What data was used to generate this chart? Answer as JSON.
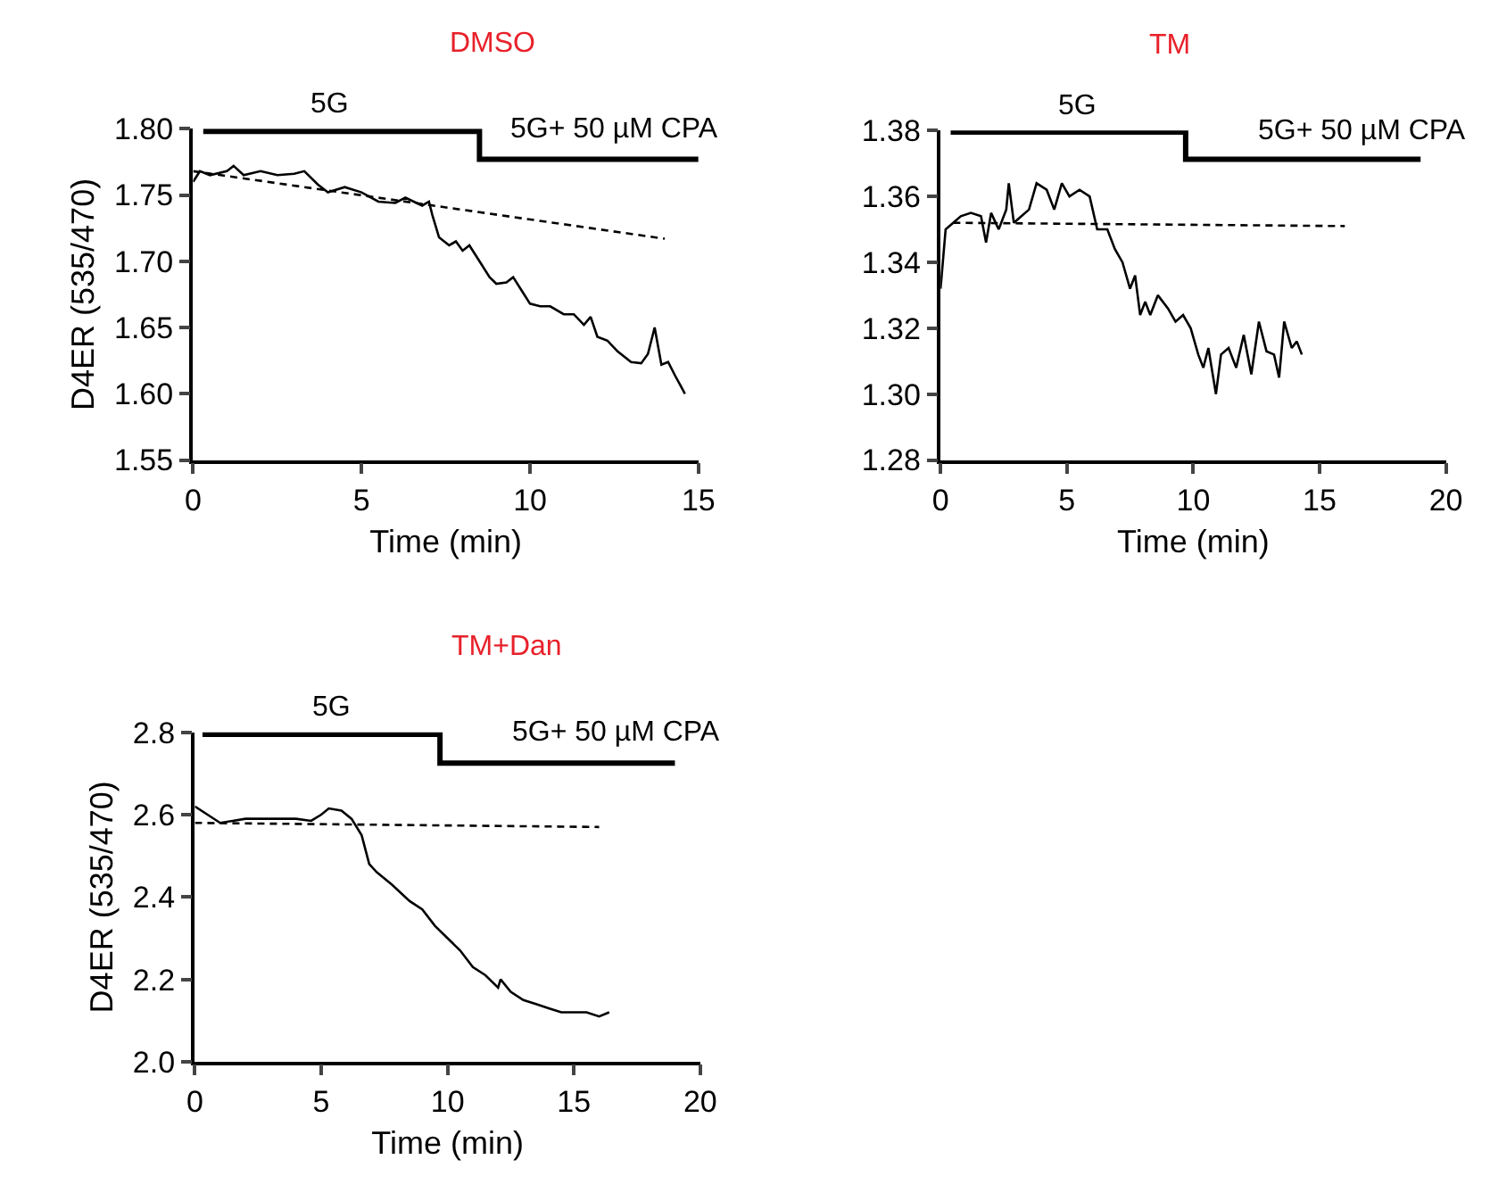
{
  "chart_data": [
    {
      "type": "line",
      "title": "DMSO",
      "xlabel": "Time (min)",
      "ylabel": "D4ER (535/470)",
      "xlim": [
        0,
        15
      ],
      "xticks": [
        0,
        5,
        10,
        15
      ],
      "ylim": [
        1.55,
        1.8
      ],
      "yticks": [
        {
          "value": 1.55,
          "label": "1.55"
        },
        {
          "value": 1.6,
          "label": "1.60"
        },
        {
          "value": 1.65,
          "label": "1.65"
        },
        {
          "value": 1.7,
          "label": "1.70"
        },
        {
          "value": 1.75,
          "label": "1.75"
        },
        {
          "value": 1.8,
          "label": "1.80"
        }
      ],
      "annotations": [
        "5G",
        "5G+ 50 µM CPA"
      ],
      "series": [
        {
          "color": "#000000",
          "x": [
            0,
            0.2,
            0.5,
            1,
            1.2,
            1.5,
            2,
            2.5,
            3,
            3.3,
            3.7,
            4,
            4.5,
            5,
            5.5,
            6,
            6.3,
            6.8,
            7,
            7.1,
            7.3,
            7.6,
            7.8,
            8,
            8.2,
            8.5,
            8.8,
            9,
            9.3,
            9.5,
            9.8,
            10,
            10.3,
            10.6,
            11,
            11.3,
            11.6,
            11.8,
            12,
            12.3,
            12.6,
            13,
            13.3,
            13.5,
            13.7,
            13.9,
            14.1,
            14.3,
            14.6
          ],
          "values": [
            1.76,
            1.768,
            1.765,
            1.768,
            1.772,
            1.765,
            1.768,
            1.765,
            1.766,
            1.768,
            1.758,
            1.752,
            1.756,
            1.752,
            1.745,
            1.744,
            1.748,
            1.742,
            1.745,
            1.735,
            1.718,
            1.712,
            1.715,
            1.708,
            1.712,
            1.7,
            1.688,
            1.683,
            1.684,
            1.688,
            1.676,
            1.668,
            1.666,
            1.666,
            1.66,
            1.66,
            1.652,
            1.658,
            1.643,
            1.64,
            1.632,
            1.624,
            1.623,
            1.63,
            1.65,
            1.622,
            1.624,
            1.614,
            1.6
          ]
        },
        {
          "color": "#000000",
          "line_style": "dashed",
          "x": [
            0,
            14
          ],
          "values": [
            1.768,
            1.717
          ]
        },
        {
          "type": "step",
          "color": "#000000",
          "x": [
            0.3,
            8.5,
            15
          ],
          "values": [
            1.798,
            1.777,
            1.777
          ]
        }
      ]
    },
    {
      "type": "line",
      "title": "TM",
      "xlabel": "Time (min)",
      "xlim": [
        0,
        20
      ],
      "xticks": [
        0,
        5,
        10,
        15,
        20
      ],
      "ylim": [
        1.28,
        1.38
      ],
      "yticks": [
        1.28,
        {
          "value": 1.3,
          "label": "1.30"
        },
        1.32,
        1.34,
        1.36,
        1.38
      ],
      "annotations": [
        "5G",
        "5G+ 50 µM CPA"
      ],
      "series": [
        {
          "color": "#000000",
          "x": [
            0,
            0.2,
            0.5,
            0.8,
            1.2,
            1.6,
            1.8,
            2,
            2.3,
            2.6,
            2.7,
            2.9,
            3.2,
            3.5,
            3.8,
            4.2,
            4.5,
            4.8,
            5.1,
            5.5,
            5.9,
            6.2,
            6.6,
            6.9,
            7.2,
            7.5,
            7.7,
            7.9,
            8.1,
            8.3,
            8.6,
            9,
            9.3,
            9.6,
            9.9,
            10.2,
            10.4,
            10.6,
            10.9,
            11.1,
            11.4,
            11.7,
            12,
            12.3,
            12.6,
            12.9,
            13.2,
            13.4,
            13.6,
            13.9,
            14.1,
            14.3
          ],
          "values": [
            1.332,
            1.35,
            1.352,
            1.354,
            1.355,
            1.354,
            1.346,
            1.355,
            1.35,
            1.356,
            1.364,
            1.352,
            1.354,
            1.356,
            1.364,
            1.362,
            1.356,
            1.364,
            1.36,
            1.362,
            1.36,
            1.35,
            1.35,
            1.344,
            1.34,
            1.332,
            1.336,
            1.324,
            1.328,
            1.324,
            1.33,
            1.326,
            1.322,
            1.324,
            1.32,
            1.312,
            1.308,
            1.314,
            1.3,
            1.312,
            1.314,
            1.308,
            1.318,
            1.306,
            1.322,
            1.313,
            1.312,
            1.305,
            1.322,
            1.314,
            1.316,
            1.312
          ]
        },
        {
          "color": "#000000",
          "line_style": "dashed",
          "x": [
            0.5,
            16
          ],
          "values": [
            1.352,
            1.351
          ]
        },
        {
          "type": "step",
          "color": "#000000",
          "x": [
            0.4,
            9.7,
            19
          ],
          "values": [
            1.3795,
            1.3713,
            1.3713
          ]
        }
      ]
    },
    {
      "type": "line",
      "title": "TM+Dan",
      "xlabel": "Time (min)",
      "ylabel": "D4ER (535/470)",
      "xlim": [
        0,
        20
      ],
      "xticks": [
        0,
        5,
        10,
        15,
        20
      ],
      "ylim": [
        2.0,
        2.8
      ],
      "yticks": [
        {
          "value": 2.0,
          "label": "2.0"
        },
        2.2,
        2.4,
        2.6,
        2.8
      ],
      "annotations": [
        "5G",
        "5G+ 50 µM CPA"
      ],
      "series": [
        {
          "color": "#000000",
          "x": [
            0,
            0.5,
            1,
            1.5,
            2,
            3,
            4,
            4.6,
            5,
            5.3,
            5.8,
            6.2,
            6.6,
            6.9,
            7.2,
            7.8,
            8.5,
            9,
            9.5,
            10,
            10.5,
            11,
            11.5,
            12,
            12.1,
            12.5,
            13,
            13.5,
            14,
            14.5,
            15,
            15.5,
            16,
            16.4
          ],
          "values": [
            2.62,
            2.6,
            2.58,
            2.585,
            2.59,
            2.59,
            2.59,
            2.585,
            2.6,
            2.615,
            2.61,
            2.59,
            2.55,
            2.48,
            2.46,
            2.43,
            2.39,
            2.37,
            2.33,
            2.3,
            2.27,
            2.23,
            2.21,
            2.18,
            2.2,
            2.17,
            2.15,
            2.14,
            2.13,
            2.12,
            2.12,
            2.12,
            2.11,
            2.12
          ]
        },
        {
          "color": "#000000",
          "line_style": "dashed",
          "x": [
            0,
            16
          ],
          "values": [
            2.58,
            2.57
          ]
        },
        {
          "type": "step",
          "color": "#000000",
          "x": [
            0.3,
            9.7,
            19
          ],
          "values": [
            2.795,
            2.725,
            2.725
          ]
        }
      ]
    }
  ]
}
